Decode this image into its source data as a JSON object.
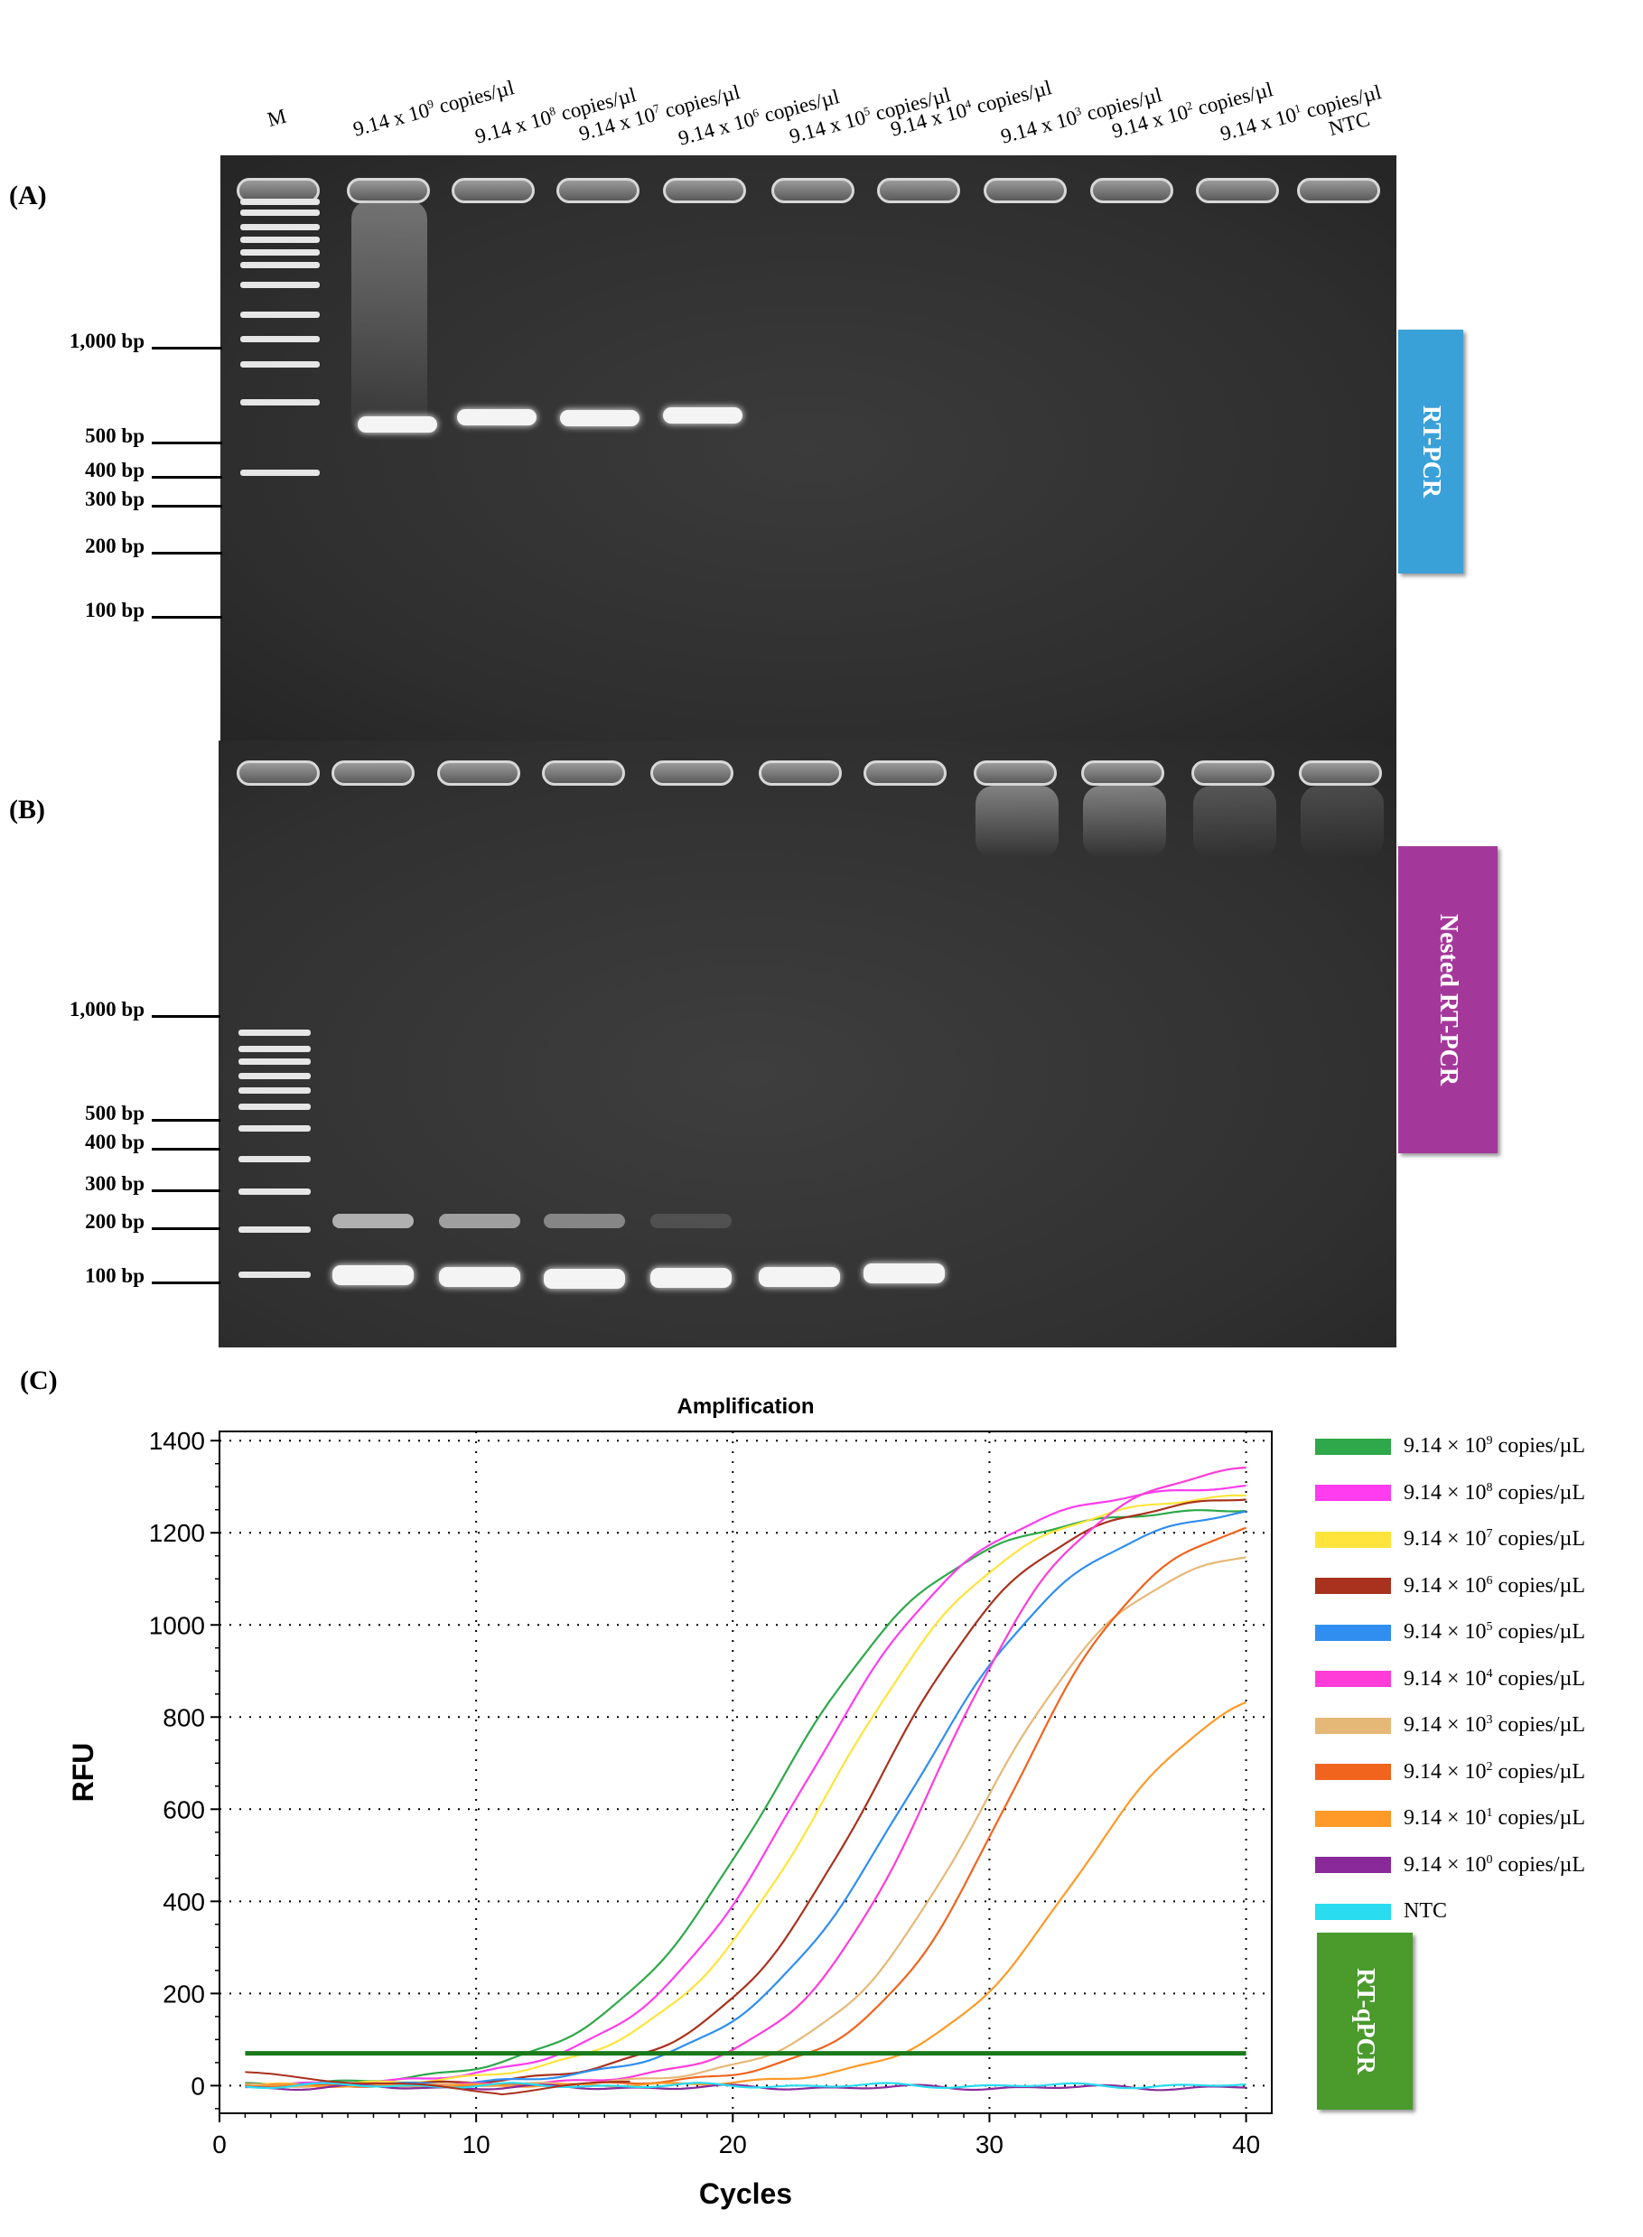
{
  "panels": {
    "a": {
      "label": "(A)",
      "tag": "RT-PCR",
      "tag_color": "#3aa0d8"
    },
    "b": {
      "label": "(B)",
      "tag": "Nested RT-PCR",
      "tag_color": "#a4389a"
    },
    "c": {
      "label": "(C)",
      "tag": "RT-qPCR",
      "tag_color": "#4a9a2c"
    }
  },
  "lanes": [
    {
      "base": "M",
      "exp": "",
      "unit": ""
    },
    {
      "base": "9.14 x 10",
      "exp": "9",
      "unit": "copies/µl"
    },
    {
      "base": "9.14 x 10",
      "exp": "8",
      "unit": "copies/µl"
    },
    {
      "base": "9.14 x 10",
      "exp": "7",
      "unit": "copies/µl"
    },
    {
      "base": "9.14 x 10",
      "exp": "6",
      "unit": "copies/µl"
    },
    {
      "base": "9.14 x 10",
      "exp": "5",
      "unit": "copies/µl"
    },
    {
      "base": "9.14 x 10",
      "exp": "4",
      "unit": "copies/µl"
    },
    {
      "base": "9.14 x 10",
      "exp": "3",
      "unit": "copies/µl"
    },
    {
      "base": "9.14 x 10",
      "exp": "2",
      "unit": "copies/µl"
    },
    {
      "base": "9.14 x 10",
      "exp": "1",
      "unit": "copies/µl"
    },
    {
      "base": "NTC",
      "exp": "",
      "unit": ""
    }
  ],
  "markers": [
    "1,000 bp",
    "500 bp",
    "400 bp",
    "300 bp",
    "200 bp",
    "100 bp"
  ],
  "chart_data": {
    "type": "line",
    "title": "Amplification",
    "xlabel": "Cycles",
    "ylabel": "RFU",
    "xlim": [
      0,
      41
    ],
    "ylim": [
      -60,
      1420
    ],
    "xticks": [
      0,
      10,
      20,
      30,
      40
    ],
    "yticks": [
      0,
      200,
      400,
      600,
      800,
      1000,
      1200,
      1400
    ],
    "grid": true,
    "legend_position": "right",
    "threshold": {
      "value": 70,
      "color": "#1a7a1a"
    },
    "series": [
      {
        "exp": "9",
        "name": "9.14 × 10",
        "unit": "copies/µL",
        "color": "#2ea84a",
        "ct": 21.5,
        "k": 0.3,
        "max": 1380,
        "ys": 1250
      },
      {
        "exp": "8",
        "name": "9.14 × 10",
        "unit": "copies/µL",
        "color": "#ff3cf0",
        "ct": 22.8,
        "k": 0.3,
        "max": 1400,
        "ys": 1300
      },
      {
        "exp": "7",
        "name": "9.14 × 10",
        "unit": "copies/µL",
        "color": "#ffe43c",
        "ct": 23.8,
        "k": 0.3,
        "max": 1420,
        "ys": 1280
      },
      {
        "exp": "6",
        "name": "9.14 × 10",
        "unit": "copies/µL",
        "color": "#a8321e",
        "ct": 25.5,
        "k": 0.32,
        "max": 1420,
        "ys": 1275
      },
      {
        "exp": "5",
        "name": "9.14 × 10",
        "unit": "copies/µL",
        "color": "#2f8ef0",
        "ct": 26.9,
        "k": 0.3,
        "max": 1440,
        "ys": 1245
      },
      {
        "exp": "4",
        "name": "9.14 × 10",
        "unit": "copies/µL",
        "color": "#ff3cd8",
        "ct": 28.0,
        "k": 0.35,
        "max": 1480,
        "ys": 1340
      },
      {
        "exp": "3",
        "name": "9.14 × 10",
        "unit": "copies/µL",
        "color": "#e6b878",
        "ct": 29.6,
        "k": 0.34,
        "max": 1380,
        "ys": 1150
      },
      {
        "exp": "2",
        "name": "9.14 × 10",
        "unit": "copies/µL",
        "color": "#f0641e",
        "ct": 30.8,
        "k": 0.36,
        "max": 1400,
        "ys": 1210
      },
      {
        "exp": "1",
        "name": "9.14 × 10",
        "unit": "copies/µL",
        "color": "#ff9a28",
        "ct": 33.4,
        "k": 0.36,
        "max": 1060,
        "ys": 830
      },
      {
        "exp": "0",
        "name": "9.14 × 10",
        "unit": "copies/µL",
        "color": "#8a2a9a",
        "ct": null
      },
      {
        "exp": "",
        "name": "NTC",
        "unit": "",
        "color": "#29dcf0",
        "ct": null
      }
    ]
  }
}
